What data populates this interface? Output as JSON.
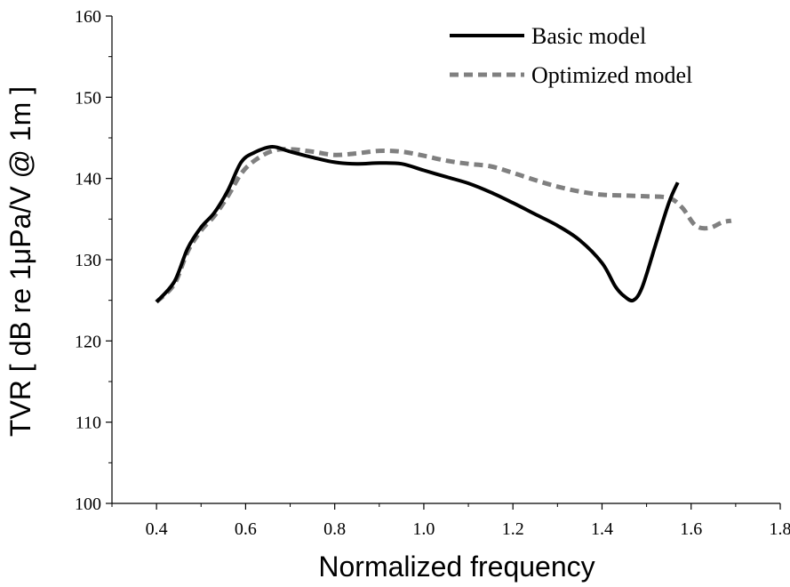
{
  "chart_data": {
    "type": "line",
    "xlabel": "Normalized frequency",
    "ylabel": "TVR [ dB re 1μPa/V @ 1m ]",
    "xlim": [
      0.3,
      1.8
    ],
    "ylim": [
      100,
      160
    ],
    "xticks": [
      "0.4",
      "0.6",
      "0.8",
      "1.0",
      "1.2",
      "1.4",
      "1.6",
      "1.8"
    ],
    "yticks": [
      "100",
      "110",
      "120",
      "130",
      "140",
      "150",
      "160"
    ],
    "legend_position": "top-right",
    "grid": false,
    "series": [
      {
        "name": "Basic model",
        "color": "#000000",
        "style": "solid",
        "x": [
          0.4,
          0.44,
          0.47,
          0.5,
          0.53,
          0.56,
          0.59,
          0.62,
          0.66,
          0.7,
          0.75,
          0.8,
          0.85,
          0.9,
          0.95,
          1.0,
          1.05,
          1.1,
          1.15,
          1.2,
          1.25,
          1.3,
          1.35,
          1.4,
          1.43,
          1.45,
          1.47,
          1.49,
          1.52,
          1.55,
          1.57
        ],
        "y": [
          124.8,
          127.3,
          131.4,
          134.0,
          135.8,
          138.5,
          142.0,
          143.2,
          143.9,
          143.3,
          142.6,
          142.0,
          141.8,
          141.9,
          141.8,
          141.0,
          140.2,
          139.4,
          138.3,
          137.0,
          135.6,
          134.2,
          132.4,
          129.6,
          126.7,
          125.5,
          125.0,
          126.6,
          131.8,
          137.0,
          139.5
        ]
      },
      {
        "name": "Optimized model",
        "color": "#808080",
        "style": "dashed",
        "x": [
          0.4,
          0.44,
          0.47,
          0.5,
          0.53,
          0.56,
          0.59,
          0.62,
          0.66,
          0.7,
          0.75,
          0.8,
          0.85,
          0.9,
          0.95,
          1.0,
          1.05,
          1.1,
          1.15,
          1.2,
          1.25,
          1.3,
          1.35,
          1.4,
          1.45,
          1.5,
          1.55,
          1.58,
          1.61,
          1.64,
          1.67,
          1.69
        ],
        "y": [
          124.8,
          127.0,
          131.0,
          133.6,
          135.4,
          137.8,
          140.6,
          142.2,
          143.4,
          143.6,
          143.3,
          142.9,
          143.1,
          143.4,
          143.3,
          142.8,
          142.2,
          141.8,
          141.5,
          140.7,
          139.8,
          139.0,
          138.4,
          138.0,
          137.9,
          137.8,
          137.6,
          136.4,
          134.2,
          133.9,
          134.6,
          134.8
        ]
      }
    ]
  }
}
